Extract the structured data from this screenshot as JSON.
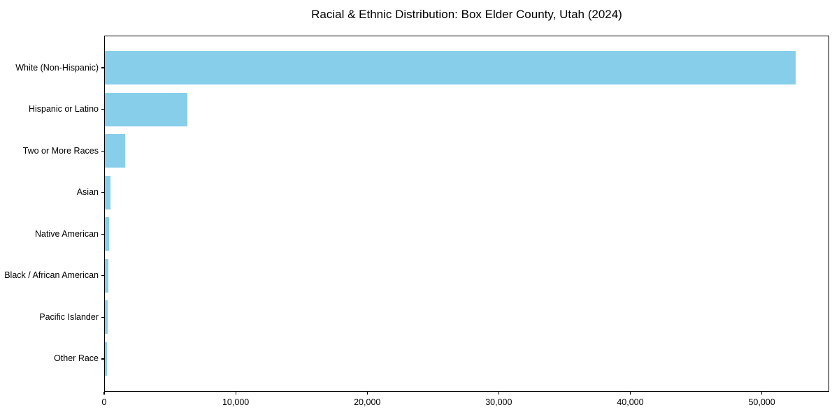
{
  "title": "Racial & Ethnic Distribution: Box Elder County, Utah (2024)",
  "chart_data": {
    "type": "bar",
    "orientation": "horizontal",
    "title": "Racial & Ethnic Distribution: Box Elder County, Utah (2024)",
    "xlabel": "",
    "ylabel": "",
    "bar_color": "#87CEEB",
    "grid": false,
    "legend": null,
    "categories": [
      "White (Non-Hispanic)",
      "Hispanic or Latino",
      "Two or More Races",
      "Asian",
      "Native American",
      "Black / African American",
      "Pacific Islander",
      "Other Race"
    ],
    "values": [
      52500,
      6260,
      1550,
      450,
      300,
      250,
      200,
      180
    ],
    "xlim": [
      0,
      55125
    ],
    "x_ticks": [
      0,
      10000,
      20000,
      30000,
      40000,
      50000
    ],
    "x_tick_labels": [
      "0",
      "10,000",
      "20,000",
      "30,000",
      "40,000",
      "50,000"
    ]
  }
}
